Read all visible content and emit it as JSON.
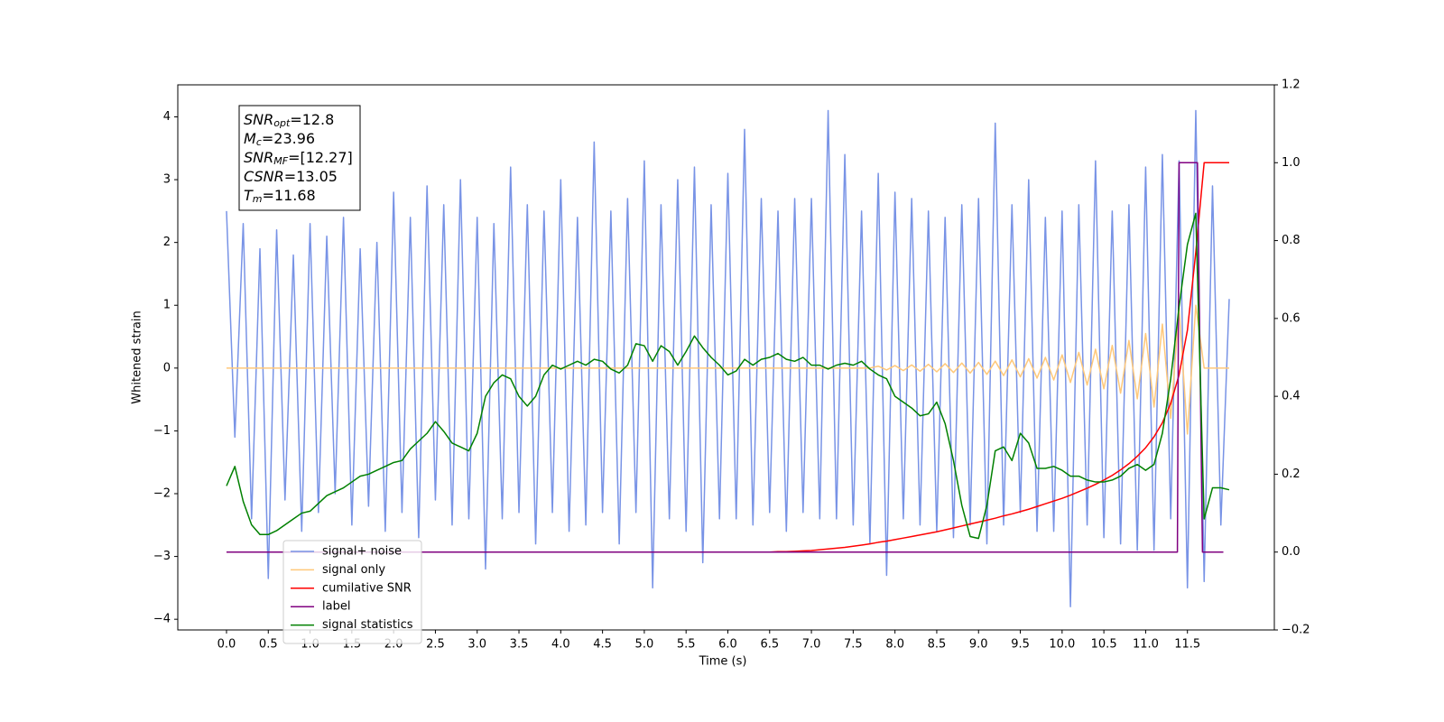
{
  "chart_data": {
    "type": "line",
    "xlabel": "Time (s)",
    "ylabel": "Whitened strain",
    "xlim": [
      -0.583,
      12.54
    ],
    "ylim": [
      -4.17,
      4.51
    ],
    "y2lim": [
      -0.2,
      1.2
    ],
    "xticks": [
      {
        "value": 0,
        "label": "0.0"
      },
      0.5,
      {
        "value": 1,
        "label": "1.0"
      },
      1.5,
      {
        "value": 2,
        "label": "2.0"
      },
      2.5,
      {
        "value": 3,
        "label": "3.0"
      },
      3.5,
      {
        "value": 4,
        "label": "4.0"
      },
      4.5,
      {
        "value": 5,
        "label": "5.0"
      },
      5.5,
      {
        "value": 6,
        "label": "6.0"
      },
      6.5,
      {
        "value": 7,
        "label": "7.0"
      },
      7.5,
      {
        "value": 8,
        "label": "8.0"
      },
      8.5,
      {
        "value": 9,
        "label": "9.0"
      },
      9.5,
      {
        "value": 10,
        "label": "10.0"
      },
      10.5,
      {
        "value": 11,
        "label": "11.0"
      },
      11.5
    ],
    "yticks": [
      {
        "value": -4,
        "label": "−4"
      },
      {
        "value": -3,
        "label": "−3"
      },
      {
        "value": -2,
        "label": "−2"
      },
      {
        "value": -1,
        "label": "−1"
      },
      0,
      1,
      2,
      3,
      4
    ],
    "y2ticks": [
      {
        "value": -0.2,
        "label": "−0.2"
      },
      {
        "value": 0,
        "label": "0.0"
      },
      0.2,
      0.4,
      0.6,
      0.8,
      {
        "value": 1,
        "label": "1.0"
      },
      1.2
    ],
    "legend": "lower left",
    "annotation": [
      {
        "name": "SNR",
        "sub": "opt",
        "rest": "=12.8"
      },
      {
        "name": "M",
        "sub": "c",
        "rest": "=23.96"
      },
      {
        "name": "SNR",
        "sub": "MF",
        "rest": "=[12.27]"
      },
      {
        "name": "CSNR",
        "sub": "",
        "rest": "=13.05"
      },
      {
        "name": "T",
        "sub": "m",
        "rest": "=11.68"
      }
    ],
    "x": [
      0.0,
      0.1,
      0.2,
      0.3,
      0.4,
      0.5,
      0.6,
      0.7,
      0.8,
      0.9,
      1.0,
      1.1,
      1.2,
      1.3,
      1.4,
      1.5,
      1.6,
      1.7,
      1.8,
      1.9,
      2.0,
      2.1,
      2.2,
      2.3,
      2.4,
      2.5,
      2.6,
      2.7,
      2.8,
      2.9,
      3.0,
      3.1,
      3.2,
      3.3,
      3.4,
      3.5,
      3.6,
      3.7,
      3.8,
      3.9,
      4.0,
      4.1,
      4.2,
      4.3,
      4.4,
      4.5,
      4.6,
      4.7,
      4.8,
      4.9,
      5.0,
      5.1,
      5.2,
      5.3,
      5.4,
      5.5,
      5.6,
      5.7,
      5.8,
      5.9,
      6.0,
      6.1,
      6.2,
      6.3,
      6.4,
      6.5,
      6.6,
      6.7,
      6.8,
      6.9,
      7.0,
      7.1,
      7.2,
      7.3,
      7.4,
      7.5,
      7.6,
      7.7,
      7.8,
      7.9,
      8.0,
      8.1,
      8.2,
      8.3,
      8.4,
      8.5,
      8.6,
      8.7,
      8.8,
      8.9,
      9.0,
      9.1,
      9.2,
      9.3,
      9.4,
      9.5,
      9.6,
      9.7,
      9.8,
      9.9,
      10.0,
      10.1,
      10.2,
      10.3,
      10.4,
      10.5,
      10.6,
      10.7,
      10.8,
      10.9,
      11.0,
      11.1,
      11.2,
      11.3,
      11.4,
      11.5,
      11.6,
      11.7,
      11.8,
      11.9,
      12.0
    ],
    "series": [
      {
        "name": "signal+ noise",
        "color": "#7893e6",
        "values": [
          2.5,
          -1.1,
          2.3,
          -2.4,
          1.9,
          -3.35,
          2.2,
          -2.1,
          1.8,
          -2.6,
          2.3,
          -2.3,
          2.1,
          -2.0,
          2.4,
          -2.5,
          1.9,
          -2.2,
          2.0,
          -2.6,
          2.8,
          -2.3,
          2.4,
          -2.7,
          2.9,
          -2.1,
          2.6,
          -2.5,
          3.0,
          -2.4,
          2.4,
          -3.2,
          2.3,
          -2.4,
          3.2,
          -2.3,
          2.6,
          -2.8,
          2.5,
          -2.3,
          3.0,
          -2.6,
          2.4,
          -2.5,
          3.6,
          -2.3,
          2.5,
          -2.8,
          2.7,
          -2.3,
          3.3,
          -3.5,
          2.6,
          -2.4,
          3.0,
          -2.6,
          3.2,
          -3.1,
          2.6,
          -2.4,
          3.1,
          -2.4,
          3.8,
          -2.5,
          2.7,
          -2.3,
          2.5,
          -2.6,
          2.7,
          -2.3,
          2.7,
          -2.4,
          4.1,
          -2.4,
          3.4,
          -2.5,
          2.5,
          -2.8,
          3.1,
          -3.3,
          2.8,
          -2.4,
          2.7,
          -2.5,
          2.5,
          -2.6,
          2.4,
          -2.7,
          2.6,
          -2.5,
          2.7,
          -2.8,
          3.9,
          -2.5,
          2.6,
          -2.3,
          3.0,
          -2.6,
          2.4,
          -2.6,
          2.5,
          -3.8,
          2.6,
          -2.5,
          3.3,
          -2.7,
          2.5,
          -2.8,
          2.6,
          -2.9,
          3.2,
          -2.9,
          3.4,
          -2.4,
          3.3,
          -3.5,
          4.1,
          -3.4,
          2.9,
          -2.5,
          1.1
        ]
      },
      {
        "name": "signal only",
        "color": "#ffc87a",
        "values": [
          0,
          0,
          0,
          0,
          0,
          0,
          0,
          0,
          0,
          0,
          0,
          0,
          0,
          0,
          0,
          0,
          0,
          0,
          0,
          0,
          0,
          0,
          0,
          0,
          0,
          0,
          0,
          0,
          0,
          0,
          0,
          0,
          0,
          0,
          0,
          0,
          0,
          0,
          0,
          0,
          0,
          0,
          0,
          0,
          0,
          0,
          0,
          0,
          0,
          0,
          0,
          0,
          0,
          0,
          0,
          0,
          0,
          0,
          0,
          0,
          0,
          0,
          0,
          0,
          0,
          0,
          0,
          0,
          0,
          0,
          0,
          0,
          0,
          0,
          0,
          0,
          0,
          0,
          0.03,
          -0.03,
          0.04,
          -0.04,
          0.05,
          -0.05,
          0.06,
          -0.06,
          0.07,
          -0.07,
          0.08,
          -0.08,
          0.09,
          -0.1,
          0.11,
          -0.12,
          0.13,
          -0.14,
          0.15,
          -0.16,
          0.17,
          -0.19,
          0.21,
          -0.23,
          0.25,
          -0.27,
          0.3,
          -0.33,
          0.36,
          -0.4,
          0.44,
          -0.49,
          0.55,
          -0.62,
          0.7,
          -0.8,
          0.95,
          -1.05,
          1.0,
          0,
          0,
          0,
          0
        ]
      },
      {
        "name": "cumilative SNR",
        "color": "#ff0000",
        "axis": "y2",
        "values": [
          0,
          0,
          0,
          0,
          0,
          0,
          0,
          0,
          0,
          0,
          0,
          0,
          0,
          0,
          0,
          0,
          0,
          0,
          0,
          0,
          0,
          0,
          0,
          0,
          0,
          0,
          0,
          0,
          0,
          0,
          0,
          0,
          0,
          0,
          0,
          0,
          0,
          0,
          0,
          0,
          0,
          0,
          0,
          0,
          0,
          0,
          0,
          0,
          0,
          0,
          0,
          0,
          0,
          0,
          0,
          0,
          0,
          0,
          0,
          0,
          0,
          0,
          0,
          0,
          0,
          0,
          0.001,
          0.001,
          0.002,
          0.003,
          0.004,
          0.006,
          0.008,
          0.01,
          0.012,
          0.015,
          0.018,
          0.021,
          0.025,
          0.028,
          0.032,
          0.036,
          0.04,
          0.044,
          0.048,
          0.052,
          0.057,
          0.062,
          0.067,
          0.072,
          0.077,
          0.082,
          0.087,
          0.093,
          0.098,
          0.104,
          0.11,
          0.117,
          0.124,
          0.131,
          0.138,
          0.146,
          0.155,
          0.164,
          0.174,
          0.185,
          0.197,
          0.211,
          0.227,
          0.246,
          0.268,
          0.296,
          0.332,
          0.382,
          0.455,
          0.57,
          0.77,
          1.0,
          1.0,
          1.0,
          1.0
        ]
      },
      {
        "name": "label",
        "color": "#800080",
        "axis": "y2",
        "x": [
          0,
          11.38,
          11.4,
          11.62,
          11.68,
          11.93
        ],
        "values": [
          0,
          0,
          1,
          1,
          0,
          0
        ]
      },
      {
        "name": "signal statistics",
        "color": "#008000",
        "axis": "y2",
        "values": [
          0.17,
          0.22,
          0.13,
          0.07,
          0.045,
          0.045,
          0.055,
          0.07,
          0.085,
          0.1,
          0.105,
          0.125,
          0.145,
          0.155,
          0.165,
          0.18,
          0.195,
          0.2,
          0.21,
          0.22,
          0.23,
          0.235,
          0.265,
          0.285,
          0.305,
          0.335,
          0.31,
          0.28,
          0.27,
          0.26,
          0.305,
          0.4,
          0.435,
          0.455,
          0.445,
          0.4,
          0.375,
          0.4,
          0.455,
          0.48,
          0.47,
          0.48,
          0.49,
          0.48,
          0.495,
          0.49,
          0.47,
          0.46,
          0.48,
          0.535,
          0.53,
          0.49,
          0.53,
          0.515,
          0.48,
          0.515,
          0.555,
          0.525,
          0.5,
          0.48,
          0.455,
          0.465,
          0.495,
          0.48,
          0.495,
          0.5,
          0.51,
          0.495,
          0.49,
          0.5,
          0.48,
          0.48,
          0.47,
          0.48,
          0.485,
          0.48,
          0.49,
          0.47,
          0.455,
          0.445,
          0.4,
          0.385,
          0.37,
          0.35,
          0.355,
          0.385,
          0.33,
          0.235,
          0.12,
          0.04,
          0.035,
          0.12,
          0.26,
          0.27,
          0.235,
          0.305,
          0.28,
          0.215,
          0.215,
          0.22,
          0.21,
          0.195,
          0.195,
          0.185,
          0.18,
          0.18,
          0.185,
          0.195,
          0.215,
          0.225,
          0.21,
          0.225,
          0.305,
          0.445,
          0.63,
          0.79,
          0.87,
          0.085,
          0.165,
          0.165,
          0.16
        ]
      }
    ]
  }
}
